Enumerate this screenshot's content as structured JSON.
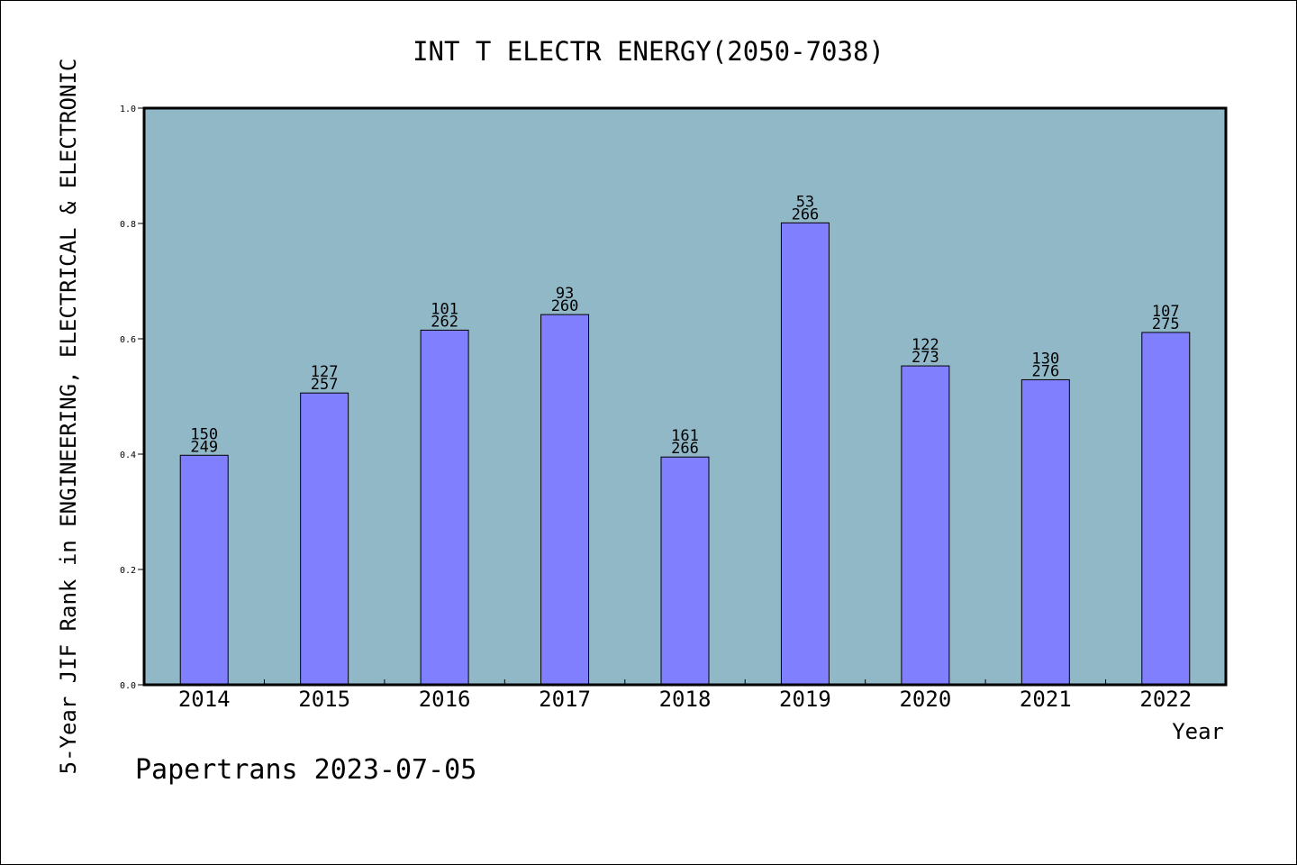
{
  "chart_data": {
    "type": "bar",
    "title": "INT T ELECTR ENERGY(2050-7038)",
    "ylabel": "5-Year JIF Rank in ENGINEERING, ELECTRICAL & ELECTRONIC",
    "xlabel": "Year",
    "footer": "Papertrans 2023-07-05",
    "ylim": [
      0,
      1.0
    ],
    "yticks": [
      "0.0",
      "0.2",
      "0.4",
      "0.6",
      "0.8",
      "1.0"
    ],
    "grid": false,
    "categories": [
      "2014",
      "2015",
      "2016",
      "2017",
      "2018",
      "2019",
      "2020",
      "2021",
      "2022"
    ],
    "values": [
      0.398,
      0.506,
      0.615,
      0.642,
      0.395,
      0.801,
      0.553,
      0.529,
      0.611
    ],
    "labels": [
      {
        "rank": "150",
        "total": "249"
      },
      {
        "rank": "127",
        "total": "257"
      },
      {
        "rank": "101",
        "total": "262"
      },
      {
        "rank": "93",
        "total": "260"
      },
      {
        "rank": "161",
        "total": "266"
      },
      {
        "rank": "53",
        "total": "266"
      },
      {
        "rank": "122",
        "total": "273"
      },
      {
        "rank": "130",
        "total": "276"
      },
      {
        "rank": "107",
        "total": "275"
      }
    ],
    "colors": {
      "plot_background": "#91b8c7",
      "bar_fill": "#8080ff",
      "bar_stroke": "#000000"
    }
  }
}
